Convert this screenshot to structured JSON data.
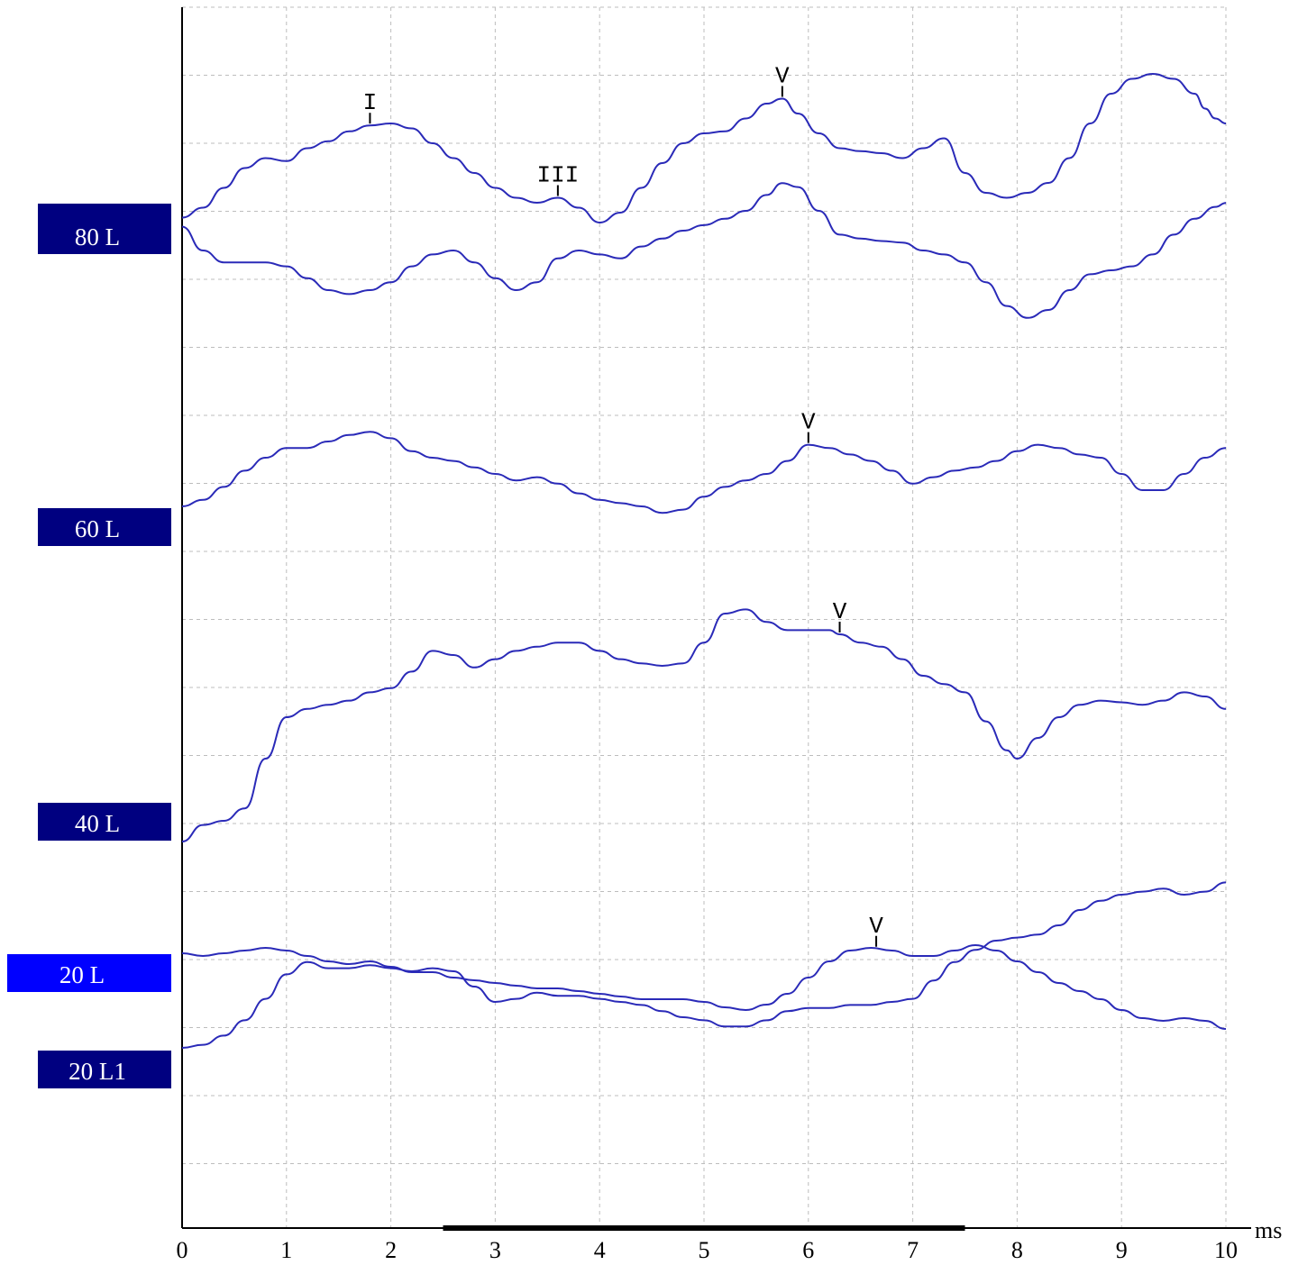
{
  "chart_data": {
    "type": "line",
    "xlabel": "",
    "x_unit": "ms",
    "ylabel": "",
    "xlim": [
      0,
      10
    ],
    "x_ticks": [
      "0",
      "1",
      "2",
      "3",
      "4",
      "5",
      "6",
      "7",
      "8",
      "9",
      "10"
    ],
    "grid": true,
    "stimulus_bar_ms": [
      2.5,
      7.5
    ],
    "colors": {
      "trace": "#2a2ab8",
      "label_box": "#000080",
      "label_box_active": "#0000ff"
    },
    "labels": [
      {
        "text": "80 L",
        "active": false
      },
      {
        "text": "60 L",
        "active": false
      },
      {
        "text": "40 L",
        "active": false
      },
      {
        "text": "20 L",
        "active": true
      },
      {
        "text": "20 L1",
        "active": false
      }
    ],
    "series": [
      {
        "trace": "80 L (a)",
        "x": [
          0,
          0.2,
          0.4,
          0.6,
          0.8,
          1.0,
          1.2,
          1.4,
          1.6,
          1.8,
          2.0,
          2.2,
          2.4,
          2.6,
          2.8,
          3.0,
          3.2,
          3.4,
          3.6,
          3.8,
          4.0,
          4.2,
          4.4,
          4.6,
          4.8,
          5.0,
          5.2,
          5.4,
          5.6,
          5.75,
          5.9,
          6.1,
          6.3,
          6.5,
          6.7,
          6.9,
          7.1,
          7.3,
          7.5,
          7.7,
          7.9,
          8.1,
          8.3,
          8.5,
          8.7,
          8.9,
          9.1,
          9.3,
          9.5,
          9.7,
          9.8,
          9.9,
          10.0
        ],
        "y": [
          -0.15,
          -0.05,
          0.15,
          0.35,
          0.45,
          0.42,
          0.55,
          0.62,
          0.72,
          0.78,
          0.8,
          0.75,
          0.6,
          0.45,
          0.3,
          0.15,
          0.05,
          0.0,
          0.05,
          -0.05,
          -0.2,
          -0.1,
          0.15,
          0.4,
          0.6,
          0.7,
          0.72,
          0.85,
          1.0,
          1.05,
          0.9,
          0.7,
          0.55,
          0.52,
          0.5,
          0.45,
          0.55,
          0.65,
          0.3,
          0.1,
          0.05,
          0.1,
          0.2,
          0.45,
          0.8,
          1.1,
          1.25,
          1.3,
          1.25,
          1.1,
          0.95,
          0.85,
          0.8
        ],
        "peaks": [
          {
            "label": "I",
            "x": 1.8
          },
          {
            "label": "III",
            "x": 3.6
          },
          {
            "label": "V",
            "x": 5.75
          }
        ]
      },
      {
        "trace": "80 L (b)",
        "x": [
          0,
          0.2,
          0.4,
          0.6,
          0.8,
          1.0,
          1.2,
          1.4,
          1.6,
          1.8,
          2.0,
          2.2,
          2.4,
          2.6,
          2.8,
          3.0,
          3.2,
          3.4,
          3.6,
          3.8,
          4.0,
          4.2,
          4.4,
          4.6,
          4.8,
          5.0,
          5.2,
          5.4,
          5.6,
          5.75,
          5.9,
          6.1,
          6.3,
          6.5,
          6.7,
          6.9,
          7.1,
          7.3,
          7.5,
          7.7,
          7.9,
          8.1,
          8.3,
          8.5,
          8.7,
          8.9,
          9.1,
          9.3,
          9.5,
          9.7,
          9.9,
          10.0
        ],
        "y": [
          -0.2,
          -0.5,
          -0.65,
          -0.65,
          -0.65,
          -0.7,
          -0.85,
          -1.0,
          -1.05,
          -1.0,
          -0.9,
          -0.7,
          -0.55,
          -0.5,
          -0.65,
          -0.85,
          -1.0,
          -0.9,
          -0.6,
          -0.5,
          -0.55,
          -0.6,
          -0.45,
          -0.35,
          -0.25,
          -0.18,
          -0.1,
          0.0,
          0.2,
          0.35,
          0.3,
          0.0,
          -0.3,
          -0.35,
          -0.38,
          -0.4,
          -0.5,
          -0.55,
          -0.65,
          -0.9,
          -1.2,
          -1.35,
          -1.25,
          -1.0,
          -0.8,
          -0.75,
          -0.7,
          -0.55,
          -0.3,
          -0.1,
          0.05,
          0.1
        ]
      },
      {
        "trace": "60 L",
        "x": [
          0,
          0.2,
          0.4,
          0.6,
          0.8,
          1.0,
          1.2,
          1.4,
          1.6,
          1.8,
          2.0,
          2.2,
          2.4,
          2.6,
          2.8,
          3.0,
          3.2,
          3.4,
          3.6,
          3.8,
          4.0,
          4.2,
          4.4,
          4.6,
          4.8,
          5.0,
          5.2,
          5.4,
          5.6,
          5.8,
          6.0,
          6.2,
          6.4,
          6.6,
          6.8,
          7.0,
          7.2,
          7.4,
          7.6,
          7.8,
          8.0,
          8.2,
          8.4,
          8.6,
          8.8,
          9.0,
          9.2,
          9.4,
          9.6,
          9.8,
          10.0
        ],
        "y": [
          0,
          0.1,
          0.3,
          0.55,
          0.75,
          0.9,
          0.9,
          1.0,
          1.1,
          1.15,
          1.05,
          0.85,
          0.75,
          0.7,
          0.6,
          0.5,
          0.4,
          0.45,
          0.35,
          0.2,
          0.1,
          0.05,
          0.0,
          -0.1,
          -0.05,
          0.15,
          0.3,
          0.4,
          0.5,
          0.7,
          0.95,
          0.9,
          0.8,
          0.7,
          0.55,
          0.35,
          0.45,
          0.55,
          0.6,
          0.7,
          0.85,
          0.95,
          0.9,
          0.8,
          0.75,
          0.5,
          0.25,
          0.25,
          0.5,
          0.75,
          0.9
        ],
        "peaks": [
          {
            "label": "V",
            "x": 6.0
          }
        ]
      },
      {
        "trace": "40 L",
        "x": [
          0,
          0.2,
          0.4,
          0.6,
          0.8,
          1.0,
          1.2,
          1.4,
          1.6,
          1.8,
          2.0,
          2.2,
          2.4,
          2.6,
          2.8,
          3.0,
          3.2,
          3.4,
          3.6,
          3.8,
          4.0,
          4.2,
          4.4,
          4.6,
          4.8,
          5.0,
          5.2,
          5.4,
          5.6,
          5.8,
          6.0,
          6.2,
          6.3,
          6.5,
          6.7,
          6.9,
          7.1,
          7.3,
          7.5,
          7.7,
          7.9,
          8.0,
          8.2,
          8.4,
          8.6,
          8.8,
          9.0,
          9.2,
          9.4,
          9.6,
          9.8,
          10.0
        ],
        "y": [
          -0.5,
          -0.3,
          -0.25,
          -0.1,
          0.5,
          1.0,
          1.1,
          1.15,
          1.2,
          1.3,
          1.35,
          1.55,
          1.8,
          1.75,
          1.6,
          1.7,
          1.8,
          1.85,
          1.9,
          1.9,
          1.8,
          1.7,
          1.65,
          1.62,
          1.65,
          1.9,
          2.25,
          2.3,
          2.15,
          2.05,
          2.05,
          2.05,
          2.0,
          1.9,
          1.85,
          1.7,
          1.5,
          1.4,
          1.3,
          0.95,
          0.6,
          0.5,
          0.75,
          1.0,
          1.15,
          1.2,
          1.18,
          1.15,
          1.2,
          1.3,
          1.25,
          1.1
        ],
        "peaks": [
          {
            "label": "V",
            "x": 6.3
          }
        ]
      },
      {
        "trace": "20 L",
        "x": [
          0,
          0.2,
          0.4,
          0.6,
          0.8,
          1.0,
          1.2,
          1.4,
          1.6,
          1.8,
          2.0,
          2.2,
          2.4,
          2.6,
          2.8,
          3.0,
          3.2,
          3.4,
          3.6,
          3.8,
          4.0,
          4.2,
          4.4,
          4.6,
          4.8,
          5.0,
          5.2,
          5.4,
          5.6,
          5.8,
          6.0,
          6.2,
          6.4,
          6.6,
          6.8,
          7.0,
          7.2,
          7.4,
          7.6,
          7.8,
          8.0,
          8.2,
          8.4,
          8.6,
          8.8,
          9.0,
          9.2,
          9.4,
          9.6,
          9.8,
          10.0
        ],
        "y": [
          0,
          -0.05,
          0.0,
          0.05,
          0.1,
          0.05,
          -0.05,
          -0.15,
          -0.2,
          -0.15,
          -0.25,
          -0.35,
          -0.35,
          -0.45,
          -0.5,
          -0.55,
          -0.6,
          -0.65,
          -0.65,
          -0.7,
          -0.75,
          -0.8,
          -0.85,
          -0.85,
          -0.85,
          -0.9,
          -1.0,
          -1.05,
          -0.95,
          -0.75,
          -0.45,
          -0.15,
          0.05,
          0.1,
          0.05,
          -0.05,
          -0.05,
          0.05,
          0.15,
          0.05,
          -0.15,
          -0.35,
          -0.55,
          -0.7,
          -0.85,
          -1.05,
          -1.2,
          -1.25,
          -1.2,
          -1.25,
          -1.4
        ],
        "peaks": [
          {
            "label": "V",
            "x": 6.65
          }
        ]
      },
      {
        "trace": "20 L1",
        "x": [
          0,
          0.2,
          0.4,
          0.6,
          0.8,
          1.0,
          1.2,
          1.4,
          1.6,
          1.8,
          2.0,
          2.2,
          2.4,
          2.6,
          2.8,
          3.0,
          3.2,
          3.4,
          3.6,
          3.8,
          4.0,
          4.2,
          4.4,
          4.6,
          4.8,
          5.0,
          5.2,
          5.4,
          5.6,
          5.8,
          6.0,
          6.2,
          6.4,
          6.6,
          6.8,
          7.0,
          7.2,
          7.4,
          7.6,
          7.8,
          8.0,
          8.2,
          8.4,
          8.6,
          8.8,
          9.0,
          9.2,
          9.4,
          9.6,
          9.8,
          10.0
        ],
        "y": [
          0,
          0.05,
          0.2,
          0.45,
          0.8,
          1.2,
          1.4,
          1.3,
          1.3,
          1.35,
          1.3,
          1.25,
          1.3,
          1.25,
          1.0,
          0.75,
          0.8,
          0.9,
          0.85,
          0.85,
          0.8,
          0.75,
          0.7,
          0.6,
          0.5,
          0.45,
          0.35,
          0.35,
          0.45,
          0.6,
          0.65,
          0.65,
          0.7,
          0.7,
          0.75,
          0.8,
          1.1,
          1.4,
          1.6,
          1.75,
          1.8,
          1.85,
          2.0,
          2.25,
          2.4,
          2.5,
          2.55,
          2.6,
          2.5,
          2.55,
          2.7
        ]
      }
    ]
  }
}
